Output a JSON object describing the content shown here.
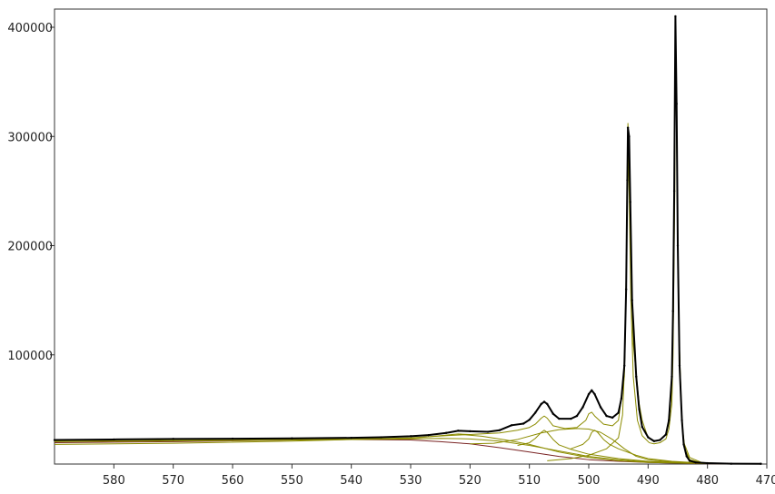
{
  "chart_data": {
    "type": "line",
    "title": "",
    "xlabel": "",
    "ylabel": "",
    "xlim": [
      590,
      470
    ],
    "ylim": [
      0,
      410000
    ],
    "x_reversed": true,
    "grid": false,
    "legend": "none",
    "x_ticks": [
      580,
      570,
      560,
      550,
      540,
      530,
      520,
      510,
      500,
      490,
      480,
      470
    ],
    "y_ticks": [
      100000,
      200000,
      300000,
      400000
    ],
    "series": [
      {
        "role": "measured",
        "color": "#000000",
        "points": [
          [
            590,
            22000
          ],
          [
            580,
            22500
          ],
          [
            570,
            23000
          ],
          [
            560,
            23200
          ],
          [
            550,
            23500
          ],
          [
            540,
            24000
          ],
          [
            535,
            24500
          ],
          [
            530,
            25500
          ],
          [
            527,
            26500
          ],
          [
            524,
            28500
          ],
          [
            522,
            30500
          ],
          [
            520,
            30000
          ],
          [
            517,
            29500
          ],
          [
            515,
            31000
          ],
          [
            513,
            35500
          ],
          [
            511,
            37000
          ],
          [
            510,
            40500
          ],
          [
            509,
            47000
          ],
          [
            508,
            55000
          ],
          [
            507.5,
            57000
          ],
          [
            507,
            55000
          ],
          [
            506,
            46000
          ],
          [
            505,
            41500
          ],
          [
            503,
            41500
          ],
          [
            502,
            44000
          ],
          [
            501,
            52000
          ],
          [
            500,
            64000
          ],
          [
            499.5,
            67500
          ],
          [
            499,
            64000
          ],
          [
            498,
            52000
          ],
          [
            497,
            44000
          ],
          [
            496,
            42500
          ],
          [
            495,
            47000
          ],
          [
            494.5,
            60000
          ],
          [
            494,
            90000
          ],
          [
            493.7,
            160000
          ],
          [
            493.5,
            260000
          ],
          [
            493.4,
            308000
          ],
          [
            493.2,
            300000
          ],
          [
            493,
            240000
          ],
          [
            492.7,
            150000
          ],
          [
            492,
            80000
          ],
          [
            491.5,
            50000
          ],
          [
            491,
            34000
          ],
          [
            490,
            24500
          ],
          [
            489,
            21000
          ],
          [
            488,
            22000
          ],
          [
            487,
            27000
          ],
          [
            486.5,
            40000
          ],
          [
            486,
            80000
          ],
          [
            485.8,
            140000
          ],
          [
            485.6,
            250000
          ],
          [
            485.4,
            410000
          ],
          [
            485.2,
            330000
          ],
          [
            485,
            200000
          ],
          [
            484.7,
            90000
          ],
          [
            484.3,
            40000
          ],
          [
            484,
            18000
          ],
          [
            483.5,
            7000
          ],
          [
            483,
            3000
          ],
          [
            482,
            1500
          ],
          [
            480,
            800
          ],
          [
            476,
            300
          ],
          [
            471,
            200
          ]
        ]
      },
      {
        "role": "background",
        "color": "#7a2424",
        "points": [
          [
            590,
            19500
          ],
          [
            570,
            20500
          ],
          [
            550,
            22000
          ],
          [
            540,
            22500
          ],
          [
            530,
            22000
          ],
          [
            525,
            20500
          ],
          [
            520,
            18500
          ],
          [
            515,
            15000
          ],
          [
            510,
            11000
          ],
          [
            505,
            7000
          ],
          [
            500,
            4000
          ],
          [
            495,
            2500
          ],
          [
            490,
            1500
          ],
          [
            485,
            800
          ],
          [
            480,
            300
          ],
          [
            471,
            100
          ]
        ]
      },
      {
        "role": "fit-envelope",
        "color": "#8c8c00",
        "points": [
          [
            590,
            21000
          ],
          [
            570,
            21700
          ],
          [
            550,
            22800
          ],
          [
            540,
            23200
          ],
          [
            530,
            23500
          ],
          [
            527,
            25000
          ],
          [
            522,
            27500
          ],
          [
            520,
            27000
          ],
          [
            515,
            28500
          ],
          [
            512,
            31000
          ],
          [
            510,
            33500
          ],
          [
            509,
            36500
          ],
          [
            508,
            42000
          ],
          [
            507.5,
            44000
          ],
          [
            507,
            42000
          ],
          [
            506,
            35000
          ],
          [
            504,
            32500
          ],
          [
            502,
            33500
          ],
          [
            500.5,
            40000
          ],
          [
            500,
            46000
          ],
          [
            499.5,
            47500
          ],
          [
            499,
            44000
          ],
          [
            497.5,
            36500
          ],
          [
            496,
            35000
          ],
          [
            495,
            40000
          ],
          [
            494,
            80000
          ],
          [
            493.5,
            240000
          ],
          [
            493.4,
            312000
          ],
          [
            493.2,
            280000
          ],
          [
            493,
            200000
          ],
          [
            492.5,
            110000
          ],
          [
            491.5,
            55000
          ],
          [
            491,
            40000
          ],
          [
            490,
            24000
          ],
          [
            489,
            20500
          ],
          [
            488,
            22000
          ],
          [
            487,
            27000
          ],
          [
            486.5,
            38000
          ],
          [
            486,
            70000
          ],
          [
            485.7,
            170000
          ],
          [
            485.4,
            409000
          ],
          [
            485.1,
            260000
          ],
          [
            484.8,
            120000
          ],
          [
            484.3,
            38000
          ],
          [
            483.8,
            14000
          ],
          [
            483,
            4000
          ],
          [
            481,
            1200
          ],
          [
            478,
            500
          ],
          [
            471,
            200
          ]
        ]
      },
      {
        "role": "fit-component",
        "color": "#8c8c00",
        "points": [
          [
            590,
            18000
          ],
          [
            570,
            19000
          ],
          [
            550,
            21000
          ],
          [
            540,
            22500
          ],
          [
            530,
            23000
          ],
          [
            525,
            23500
          ],
          [
            520,
            23000
          ],
          [
            515,
            21000
          ],
          [
            510,
            17000
          ],
          [
            505,
            12000
          ],
          [
            500,
            7000
          ],
          [
            495,
            4000
          ],
          [
            490,
            2000
          ],
          [
            480,
            500
          ],
          [
            471,
            200
          ]
        ]
      },
      {
        "role": "fit-component",
        "color": "#8c8c00",
        "points": [
          [
            590,
            20500
          ],
          [
            560,
            21500
          ],
          [
            540,
            22500
          ],
          [
            530,
            24000
          ],
          [
            524,
            26000
          ],
          [
            521,
            26800
          ],
          [
            518,
            25500
          ],
          [
            514,
            22000
          ],
          [
            510,
            18000
          ],
          [
            505,
            11000
          ],
          [
            500,
            6000
          ],
          [
            495,
            3000
          ],
          [
            490,
            1500
          ],
          [
            480,
            400
          ],
          [
            471,
            100
          ]
        ]
      },
      {
        "role": "fit-component",
        "color": "#8c8c00",
        "points": [
          [
            520,
            18500
          ],
          [
            516,
            19000
          ],
          [
            512,
            22500
          ],
          [
            508,
            28500
          ],
          [
            505,
            31500
          ],
          [
            502,
            32500
          ],
          [
            500,
            32000
          ],
          [
            498,
            29000
          ],
          [
            496,
            22500
          ],
          [
            494,
            14000
          ],
          [
            492,
            7000
          ],
          [
            490,
            4000
          ],
          [
            486,
            2000
          ],
          [
            480,
            500
          ],
          [
            471,
            200
          ]
        ]
      },
      {
        "role": "fit-component",
        "color": "#8c8c00",
        "points": [
          [
            512,
            17000
          ],
          [
            510,
            19500
          ],
          [
            509,
            23500
          ],
          [
            508,
            29000
          ],
          [
            507.5,
            31000
          ],
          [
            507,
            29000
          ],
          [
            506,
            22500
          ],
          [
            505,
            17500
          ],
          [
            503,
            13500
          ],
          [
            500,
            9000
          ],
          [
            495,
            5000
          ],
          [
            490,
            2500
          ],
          [
            480,
            500
          ],
          [
            471,
            200
          ]
        ]
      },
      {
        "role": "fit-component",
        "color": "#8c8c00",
        "points": [
          [
            503,
            14000
          ],
          [
            501,
            18000
          ],
          [
            500,
            23000
          ],
          [
            499.5,
            29000
          ],
          [
            499,
            31000
          ],
          [
            498.5,
            29000
          ],
          [
            497.5,
            22500
          ],
          [
            496.5,
            18000
          ],
          [
            495,
            14000
          ],
          [
            492,
            8000
          ],
          [
            490,
            5000
          ],
          [
            486,
            2500
          ],
          [
            480,
            500
          ],
          [
            471,
            200
          ]
        ]
      },
      {
        "role": "fit-component",
        "color": "#8c8c00",
        "points": [
          [
            507,
            3000
          ],
          [
            503,
            5000
          ],
          [
            500,
            8000
          ],
          [
            497,
            14000
          ],
          [
            495,
            24000
          ],
          [
            494.3,
            45000
          ],
          [
            493.9,
            100000
          ],
          [
            493.6,
            200000
          ],
          [
            493.4,
            295000
          ],
          [
            493.2,
            250000
          ],
          [
            492.9,
            150000
          ],
          [
            492.5,
            80000
          ],
          [
            491.8,
            40000
          ],
          [
            491,
            26000
          ],
          [
            489.8,
            19500
          ],
          [
            489,
            18500
          ],
          [
            488,
            19500
          ],
          [
            487,
            23000
          ],
          [
            486.5,
            32000
          ],
          [
            486,
            55000
          ],
          [
            485.8,
            100000
          ],
          [
            485.5,
            250000
          ],
          [
            485.4,
            408000
          ],
          [
            485.2,
            300000
          ],
          [
            484.9,
            150000
          ],
          [
            484.5,
            60000
          ],
          [
            484,
            20000
          ],
          [
            483,
            6000
          ],
          [
            481,
            1500
          ],
          [
            478,
            500
          ],
          [
            471,
            100
          ]
        ]
      }
    ]
  }
}
